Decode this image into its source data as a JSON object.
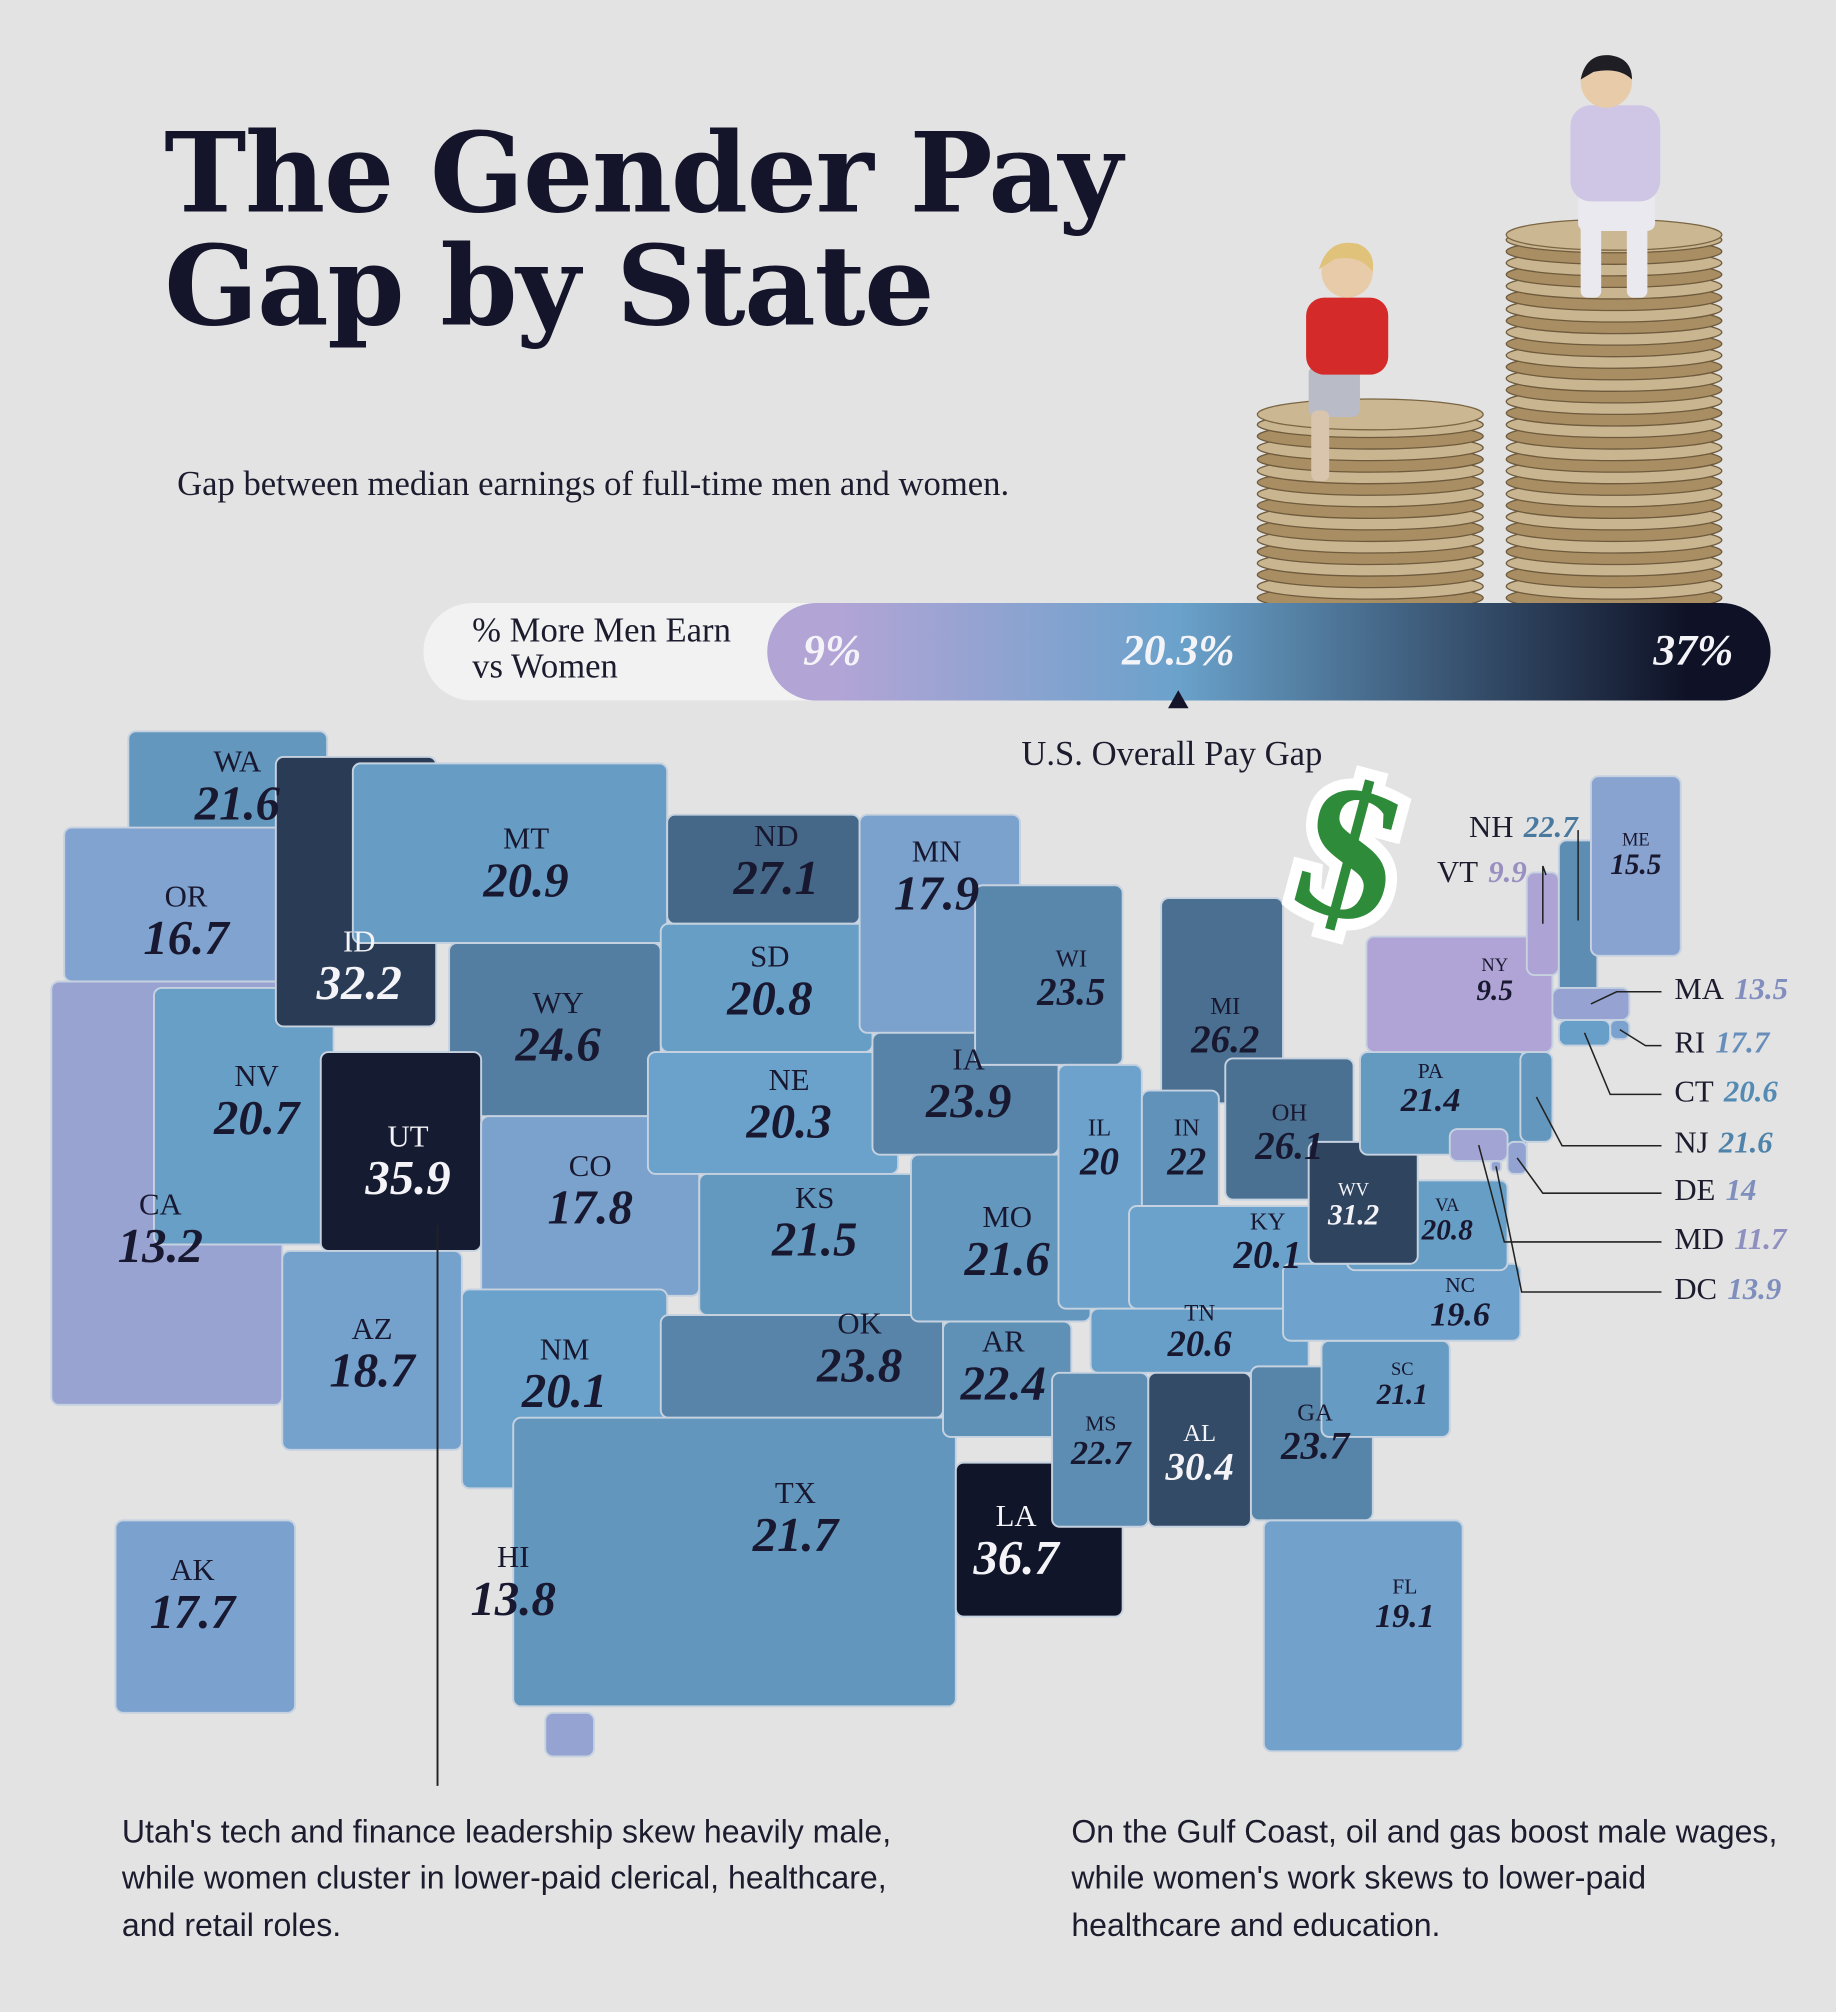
{
  "title": "The Gender Pay Gap by State",
  "subtitle": "Gap between median earnings of full-time men and women.",
  "legend": {
    "title": "% More Men Earn vs Women",
    "ticks": [
      {
        "value": 9,
        "label": "9%"
      },
      {
        "value": 20.3,
        "label": "20.3%"
      },
      {
        "value": 37,
        "label": "37%"
      }
    ],
    "colors": [
      "#b3a4d6",
      "#6aa2cb",
      "#0f1226"
    ]
  },
  "annotation": "U.S. Overall Pay Gap",
  "states": [
    {
      "code": "WA",
      "value": 21.6
    },
    {
      "code": "OR",
      "value": 16.7
    },
    {
      "code": "CA",
      "value": 13.2
    },
    {
      "code": "NV",
      "value": 20.7
    },
    {
      "code": "ID",
      "value": 32.2
    },
    {
      "code": "MT",
      "value": 20.9
    },
    {
      "code": "WY",
      "value": 24.6
    },
    {
      "code": "UT",
      "value": 35.9
    },
    {
      "code": "CO",
      "value": 17.8
    },
    {
      "code": "AZ",
      "value": 18.7
    },
    {
      "code": "NM",
      "value": 20.1
    },
    {
      "code": "ND",
      "value": 27.1
    },
    {
      "code": "SD",
      "value": 20.8
    },
    {
      "code": "NE",
      "value": 20.3
    },
    {
      "code": "KS",
      "value": 21.5
    },
    {
      "code": "OK",
      "value": 23.8
    },
    {
      "code": "TX",
      "value": 21.7
    },
    {
      "code": "MN",
      "value": 17.9
    },
    {
      "code": "IA",
      "value": 23.9
    },
    {
      "code": "MO",
      "value": 21.6
    },
    {
      "code": "AR",
      "value": 22.4
    },
    {
      "code": "LA",
      "value": 36.7
    },
    {
      "code": "WI",
      "value": 23.5
    },
    {
      "code": "IL",
      "value": 20
    },
    {
      "code": "MI",
      "value": 26.2
    },
    {
      "code": "IN",
      "value": 22
    },
    {
      "code": "OH",
      "value": 26.1
    },
    {
      "code": "KY",
      "value": 20.1
    },
    {
      "code": "TN",
      "value": 20.6
    },
    {
      "code": "MS",
      "value": 22.7
    },
    {
      "code": "AL",
      "value": 30.4
    },
    {
      "code": "GA",
      "value": 23.7
    },
    {
      "code": "FL",
      "value": 19.1
    },
    {
      "code": "SC",
      "value": 21.1
    },
    {
      "code": "NC",
      "value": 19.6
    },
    {
      "code": "VA",
      "value": 20.8
    },
    {
      "code": "WV",
      "value": 31.2
    },
    {
      "code": "PA",
      "value": 21.4
    },
    {
      "code": "NY",
      "value": 9.5
    },
    {
      "code": "VT",
      "value": 9.9
    },
    {
      "code": "NH",
      "value": 22.7
    },
    {
      "code": "ME",
      "value": 15.5
    },
    {
      "code": "MA",
      "value": 13.5
    },
    {
      "code": "RI",
      "value": 17.7
    },
    {
      "code": "CT",
      "value": 20.6
    },
    {
      "code": "NJ",
      "value": 21.6
    },
    {
      "code": "DE",
      "value": 14
    },
    {
      "code": "MD",
      "value": 11.7
    },
    {
      "code": "DC",
      "value": 13.9
    },
    {
      "code": "AK",
      "value": 17.7
    },
    {
      "code": "HI",
      "value": 13.8
    }
  ],
  "notes": [
    "Utah's tech and finance leadership skew heavily male, while women cluster in lower-paid clerical, healthcare, and retail roles.",
    "On the Gulf Coast, oil and gas boost male wages, while women's work skews to lower-paid healthcare and education."
  ]
}
